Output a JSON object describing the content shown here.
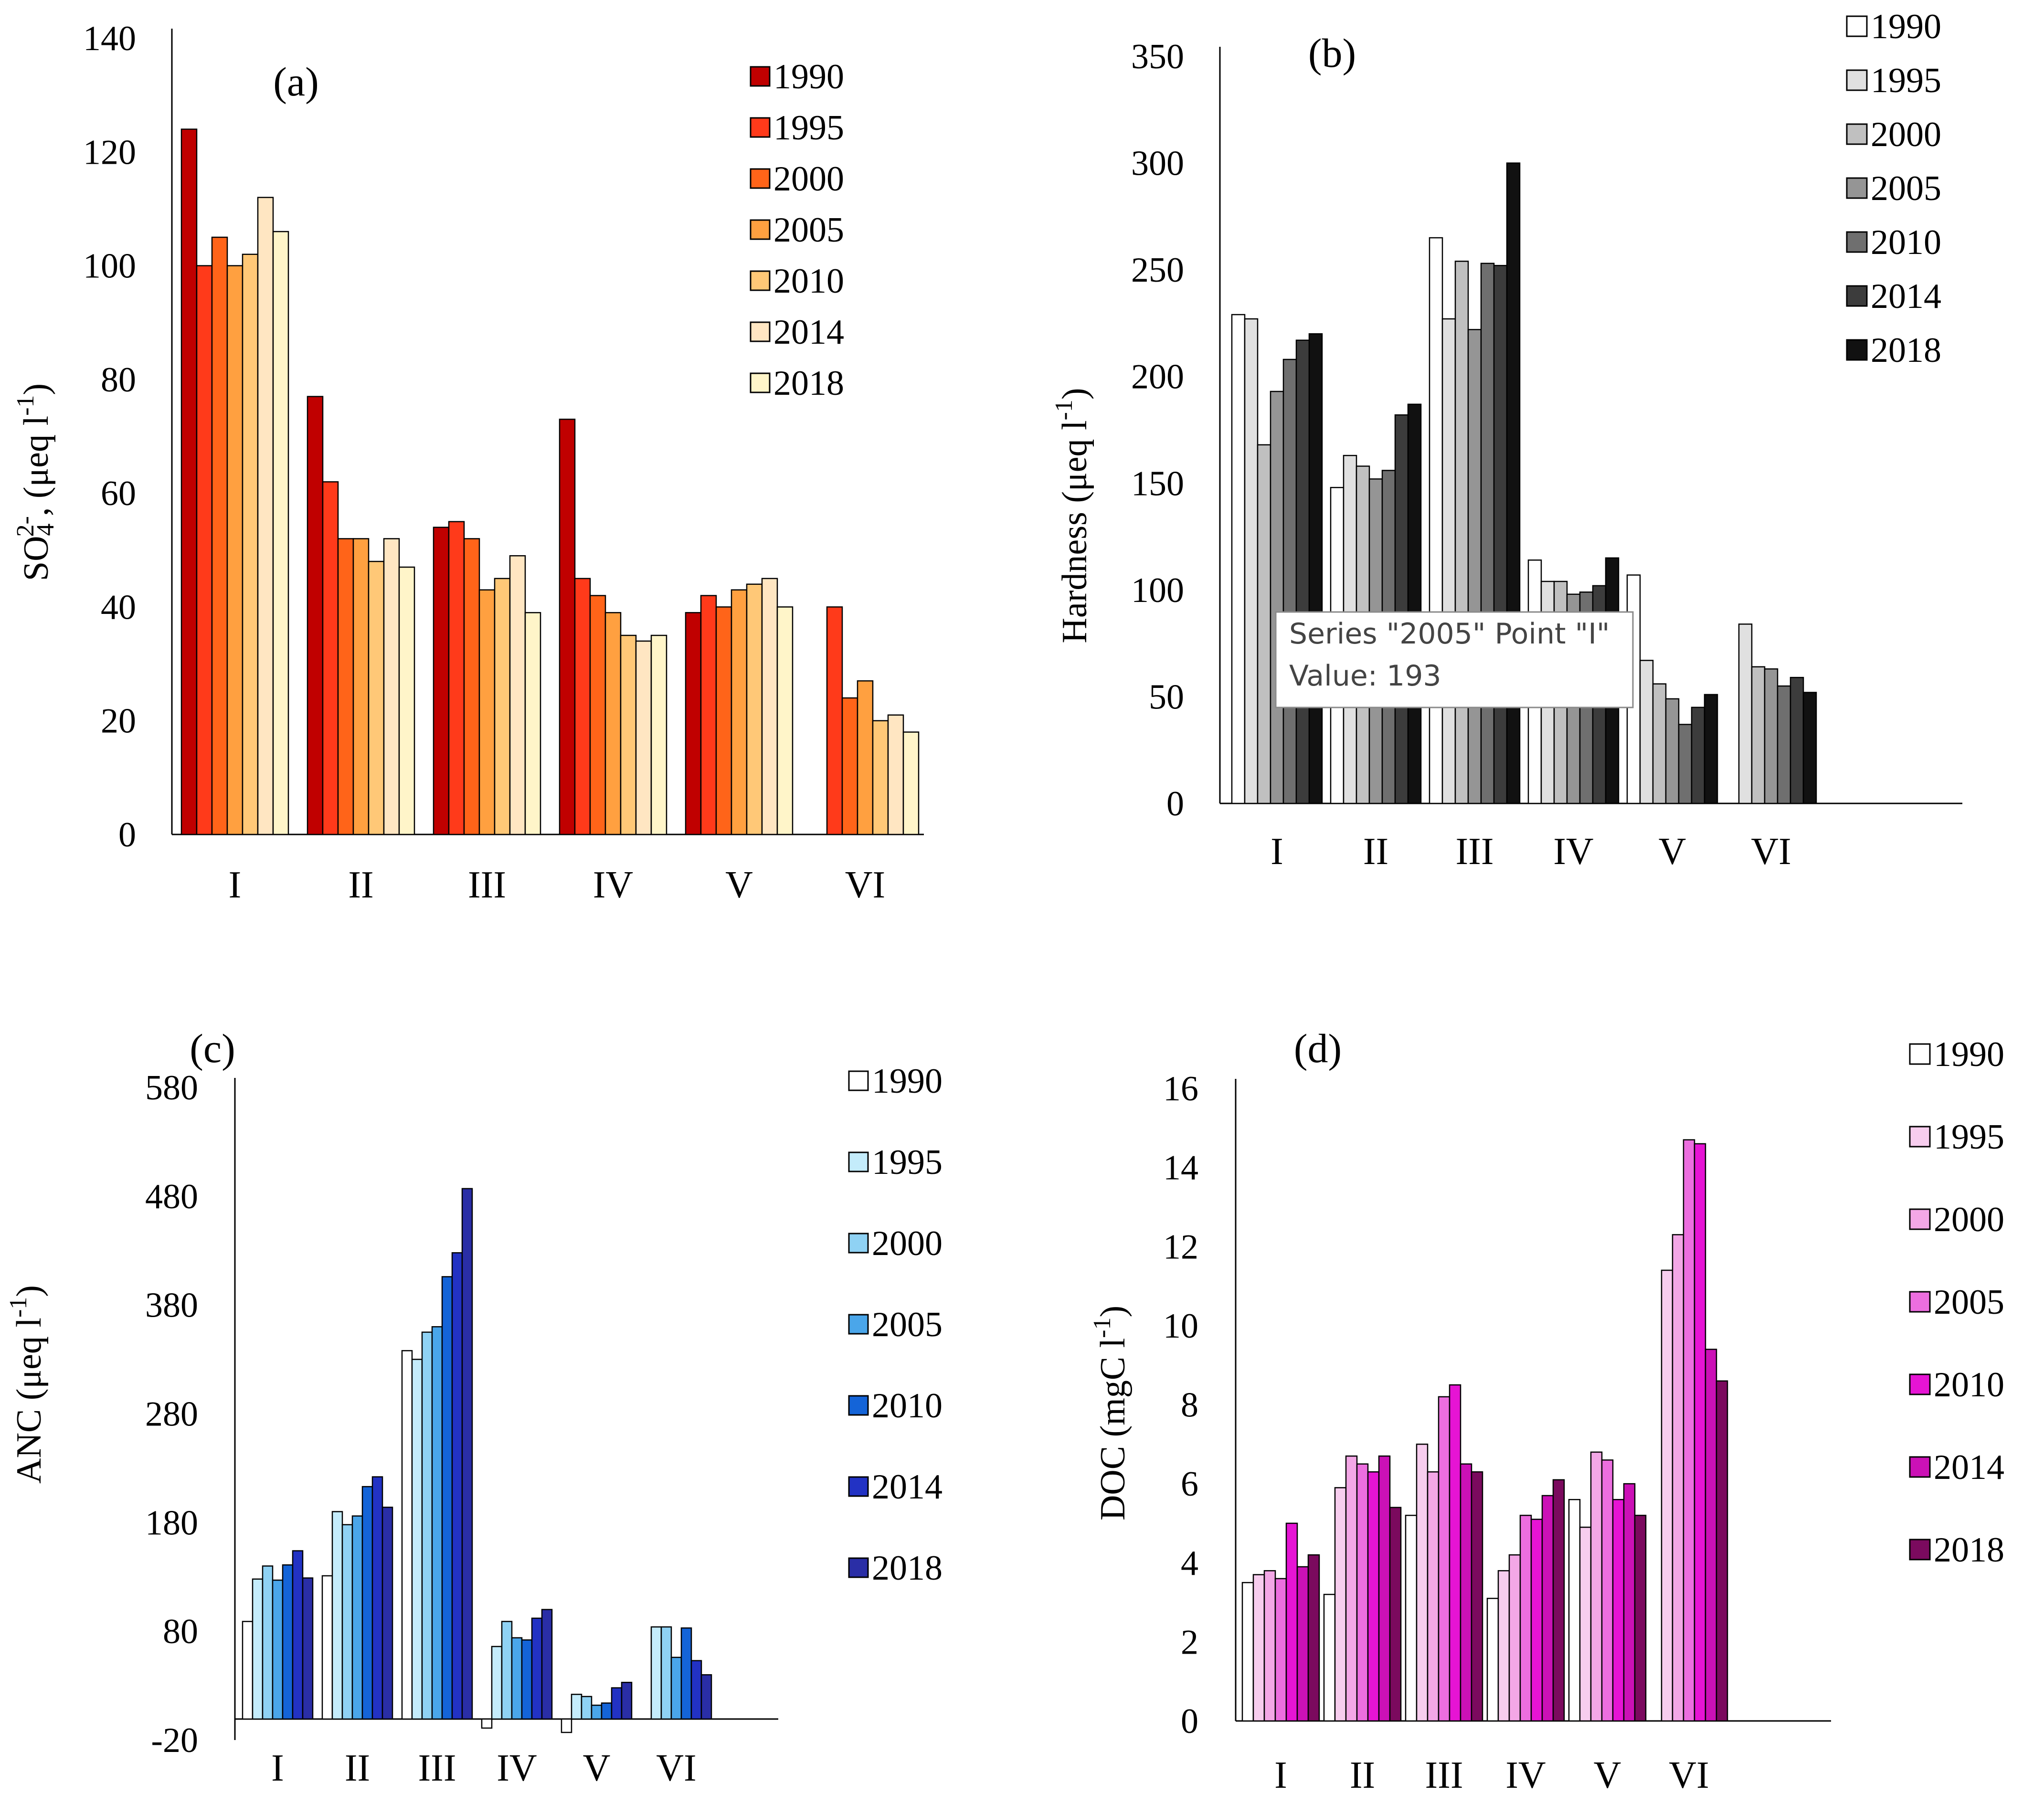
{
  "chart_data": [
    {
      "id": "a",
      "type": "bar",
      "panel_label": "(a)",
      "ylabel": "SO4 2-, (μeq l-1)",
      "ylabel_parts": {
        "base": "SO",
        "sub": "4",
        "sup": "2-",
        "rest": ", (μeq l",
        "unit_sup": "-1",
        "close": ")"
      },
      "categories": [
        "I",
        "II",
        "III",
        "IV",
        "V",
        "VI"
      ],
      "ylim": [
        0,
        140
      ],
      "yticks": [
        0,
        20,
        40,
        60,
        80,
        100,
        120,
        140
      ],
      "legend_position": "top-right",
      "series": [
        {
          "name": "1990",
          "color": "#c00000",
          "values": [
            124,
            77,
            54,
            73,
            39,
            null
          ]
        },
        {
          "name": "1995",
          "color": "#ff3a1a",
          "values": [
            100,
            62,
            55,
            45,
            42,
            40
          ]
        },
        {
          "name": "2000",
          "color": "#ff6419",
          "values": [
            105,
            52,
            52,
            42,
            40,
            24
          ]
        },
        {
          "name": "2005",
          "color": "#ffa040",
          "values": [
            100,
            52,
            43,
            39,
            43,
            27
          ]
        },
        {
          "name": "2010",
          "color": "#ffc877",
          "values": [
            102,
            48,
            45,
            35,
            44,
            20
          ]
        },
        {
          "name": "2014",
          "color": "#ffe6c2",
          "values": [
            112,
            52,
            49,
            34,
            45,
            21
          ]
        },
        {
          "name": "2018",
          "color": "#fff5c9",
          "values": [
            106,
            47,
            39,
            35,
            40,
            18
          ]
        }
      ]
    },
    {
      "id": "b",
      "type": "bar",
      "panel_label": "(b)",
      "ylabel": "Hardness (μeq l-1)",
      "ylabel_parts": {
        "base": "Hardness (μeq l",
        "unit_sup": "-1",
        "close": ")"
      },
      "categories": [
        "I",
        "II",
        "III",
        "IV",
        "V",
        "VI"
      ],
      "ylim": [
        0,
        350
      ],
      "yticks": [
        0,
        50,
        100,
        150,
        200,
        250,
        300,
        350
      ],
      "legend_position": "top-right",
      "series": [
        {
          "name": "1990",
          "color": "#ffffff",
          "values": [
            229,
            148,
            265,
            114,
            107,
            null
          ]
        },
        {
          "name": "1995",
          "color": "#e0e0e0",
          "values": [
            227,
            163,
            227,
            104,
            67,
            84
          ]
        },
        {
          "name": "2000",
          "color": "#c0c0c0",
          "values": [
            168,
            158,
            254,
            104,
            56,
            64
          ]
        },
        {
          "name": "2005",
          "color": "#959595",
          "values": [
            193,
            152,
            222,
            98,
            49,
            63
          ]
        },
        {
          "name": "2010",
          "color": "#6f6f6f",
          "values": [
            208,
            156,
            253,
            99,
            37,
            55
          ]
        },
        {
          "name": "2014",
          "color": "#3c3c3c",
          "values": [
            217,
            182,
            252,
            102,
            45,
            59
          ]
        },
        {
          "name": "2018",
          "color": "#111111",
          "values": [
            220,
            187,
            300,
            115,
            51,
            52
          ]
        }
      ],
      "tooltip": {
        "line1": "Series \"2005\" Point \"I\"",
        "line2": "Value: 193"
      }
    },
    {
      "id": "c",
      "type": "bar",
      "panel_label": "(c)",
      "ylabel": "ANC (μeq l-1)",
      "ylabel_parts": {
        "base": "ANC (μeq l",
        "unit_sup": "-1",
        "close": ")"
      },
      "categories": [
        "I",
        "II",
        "III",
        "IV",
        "V",
        "VI"
      ],
      "ylim": [
        -20,
        580
      ],
      "yticks": [
        -20,
        80,
        180,
        280,
        380,
        480,
        580
      ],
      "legend_position": "top-right",
      "series": [
        {
          "name": "1990",
          "color": "#ffffff",
          "values": [
            89,
            131,
            338,
            -9,
            -13,
            null
          ]
        },
        {
          "name": "1995",
          "color": "#c4ecfb",
          "values": [
            128,
            190,
            330,
            66,
            22,
            84
          ]
        },
        {
          "name": "2000",
          "color": "#8fd2f4",
          "values": [
            140,
            178,
            355,
            89,
            20,
            84
          ]
        },
        {
          "name": "2005",
          "color": "#4aa6ea",
          "values": [
            127,
            186,
            360,
            74,
            12,
            56
          ]
        },
        {
          "name": "2010",
          "color": "#1464d8",
          "values": [
            141,
            213,
            406,
            72,
            14,
            83
          ]
        },
        {
          "name": "2014",
          "color": "#2232c4",
          "values": [
            154,
            222,
            428,
            92,
            28,
            53
          ]
        },
        {
          "name": "2018",
          "color": "#2a2ea6",
          "values": [
            129,
            194,
            487,
            100,
            33,
            40
          ]
        }
      ]
    },
    {
      "id": "d",
      "type": "bar",
      "panel_label": "(d)",
      "ylabel": "DOC (mgC l-1)",
      "ylabel_parts": {
        "base": "DOC (mgC l",
        "unit_sup": "-1",
        "close": ")"
      },
      "categories": [
        "I",
        "II",
        "III",
        "IV",
        "V",
        "VI"
      ],
      "ylim": [
        0,
        16
      ],
      "yticks": [
        0,
        2,
        4,
        6,
        8,
        10,
        12,
        14,
        16
      ],
      "legend_position": "top-right",
      "series": [
        {
          "name": "1990",
          "color": "#ffffff",
          "values": [
            3.5,
            3.2,
            5.2,
            3.1,
            5.6,
            null
          ]
        },
        {
          "name": "1995",
          "color": "#f7cdee",
          "values": [
            3.7,
            5.9,
            7.0,
            3.8,
            4.9,
            11.4
          ]
        },
        {
          "name": "2000",
          "color": "#f3a7e6",
          "values": [
            3.8,
            6.7,
            6.3,
            4.2,
            6.8,
            12.3
          ]
        },
        {
          "name": "2005",
          "color": "#ec6edf",
          "values": [
            3.6,
            6.5,
            8.2,
            5.2,
            6.6,
            14.7
          ]
        },
        {
          "name": "2010",
          "color": "#e614d4",
          "values": [
            5.0,
            6.3,
            8.5,
            5.1,
            5.6,
            14.6
          ]
        },
        {
          "name": "2014",
          "color": "#cb11b6",
          "values": [
            3.9,
            6.7,
            6.5,
            5.7,
            6.0,
            9.4
          ]
        },
        {
          "name": "2018",
          "color": "#7b0a5e",
          "values": [
            4.2,
            5.4,
            6.3,
            6.1,
            5.2,
            8.6
          ]
        }
      ]
    }
  ]
}
